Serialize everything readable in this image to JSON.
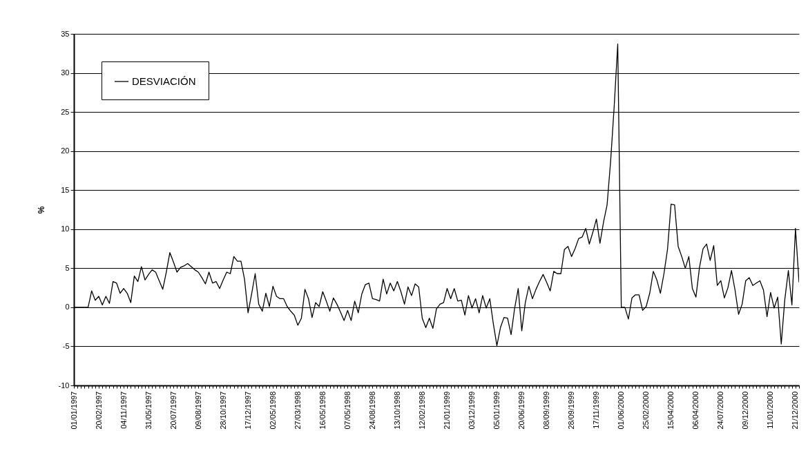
{
  "chart_data": {
    "type": "line",
    "ylabel": "%",
    "legend": "top left",
    "grid": "y",
    "marker": "none",
    "line_style": "solid",
    "ylim": [
      -10,
      35
    ],
    "yticks": [
      -10,
      -5,
      0,
      5,
      10,
      15,
      20,
      25,
      30,
      35
    ],
    "categories": [
      "01/01/1997",
      null,
      null,
      null,
      null,
      null,
      null,
      "20/02/1997",
      null,
      null,
      null,
      null,
      null,
      null,
      "04/11/1997",
      null,
      null,
      null,
      null,
      null,
      null,
      "31/05/1997",
      null,
      null,
      null,
      null,
      null,
      null,
      "20/07/1997",
      null,
      null,
      null,
      null,
      null,
      null,
      "09/08/1997",
      null,
      null,
      null,
      null,
      null,
      null,
      "28/10/1997",
      null,
      null,
      null,
      null,
      null,
      null,
      "17/12/1997",
      null,
      null,
      null,
      null,
      null,
      null,
      "02/05/1998",
      null,
      null,
      null,
      null,
      null,
      null,
      "27/03/1998",
      null,
      null,
      null,
      null,
      null,
      null,
      "16/05/1998",
      null,
      null,
      null,
      null,
      null,
      null,
      "07/05/1998",
      null,
      null,
      null,
      null,
      null,
      null,
      "24/08/1998",
      null,
      null,
      null,
      null,
      null,
      null,
      "13/10/1998",
      null,
      null,
      null,
      null,
      null,
      null,
      "12/02/1998",
      null,
      null,
      null,
      null,
      null,
      null,
      "21/01/1999",
      null,
      null,
      null,
      null,
      null,
      null,
      "03/12/1999",
      null,
      null,
      null,
      null,
      null,
      null,
      "05/01/1999",
      null,
      null,
      null,
      null,
      null,
      null,
      "20/06/1999",
      null,
      null,
      null,
      null,
      null,
      null,
      "08/09/1999",
      null,
      null,
      null,
      null,
      null,
      null,
      "28/09/1999",
      null,
      null,
      null,
      null,
      null,
      null,
      "17/11/1999",
      null,
      null,
      null,
      null,
      null,
      null,
      "01/06/2000",
      null,
      null,
      null,
      null,
      null,
      null,
      "25/02/2000",
      null,
      null,
      null,
      null,
      null,
      null,
      "15/04/2000",
      null,
      null,
      null,
      null,
      null,
      null,
      "06/04/2000",
      null,
      null,
      null,
      null,
      null,
      null,
      "24/07/2000",
      null,
      null,
      null,
      null,
      null,
      null,
      "09/12/2000",
      null,
      null,
      null,
      null,
      null,
      null,
      "11/01/2000",
      null,
      null,
      null,
      null,
      null,
      null,
      "21/12/2000",
      null
    ],
    "series": [
      {
        "name": "DESVIACIÓN",
        "color": "#000000",
        "values": [
          0,
          0,
          0,
          0,
          0,
          2.1,
          0.9,
          1.4,
          0.3,
          1.4,
          0.5,
          3.3,
          3.1,
          1.8,
          2.4,
          1.8,
          0.6,
          4.0,
          3.3,
          5.2,
          3.5,
          4.2,
          4.8,
          4.5,
          3.4,
          2.3,
          4.5,
          7.0,
          5.8,
          4.5,
          5.1,
          5.3,
          5.6,
          5.2,
          4.8,
          4.5,
          3.8,
          3.0,
          4.5,
          3.1,
          3.3,
          2.4,
          3.5,
          4.5,
          4.3,
          6.5,
          5.9,
          5.9,
          3.6,
          -0.7,
          1.7,
          4.3,
          0.4,
          -0.5,
          1.8,
          0.1,
          2.7,
          1.4,
          1.1,
          1.1,
          0.1,
          -0.5,
          -1.0,
          -2.3,
          -1.4,
          2.3,
          1.1,
          -1.3,
          0.6,
          0.1,
          2.0,
          0.8,
          -0.5,
          1.2,
          0.4,
          -0.6,
          -1.7,
          -0.4,
          -1.7,
          0.8,
          -0.7,
          1.7,
          2.9,
          3.1,
          1.1,
          1.0,
          0.8,
          3.6,
          1.7,
          3.1,
          2.1,
          3.3,
          2.0,
          0.4,
          2.6,
          1.5,
          3.0,
          2.6,
          -1.4,
          -2.6,
          -1.4,
          -2.7,
          -0.2,
          0.4,
          0.6,
          2.4,
          1.1,
          2.4,
          0.8,
          0.9,
          -1.0,
          1.5,
          -0.1,
          1.1,
          -0.7,
          1.5,
          -0.1,
          1.1,
          -2.1,
          -4.9,
          -2.6,
          -1.3,
          -1.4,
          -3.5,
          -0.1,
          2.4,
          -3.0,
          0.6,
          2.7,
          1.1,
          2.3,
          3.3,
          4.2,
          3.2,
          2.1,
          4.6,
          4.3,
          4.3,
          7.4,
          7.8,
          6.5,
          7.5,
          8.8,
          9.0,
          10.1,
          8.1,
          9.6,
          11.3,
          8.2,
          10.9,
          13.1,
          18.7,
          25.7,
          33.7,
          0,
          0,
          -1.5,
          1.2,
          1.6,
          1.6,
          -0.4,
          0.1,
          1.8,
          4.6,
          3.5,
          1.8,
          4.3,
          7.4,
          13.2,
          13.1,
          7.8,
          6.5,
          5.0,
          6.5,
          2.4,
          1.3,
          5.1,
          7.5,
          8.1,
          6.0,
          7.9,
          2.8,
          3.4,
          1.2,
          2.5,
          4.7,
          2.2,
          -0.9,
          0.4,
          3.4,
          3.8,
          2.8,
          3.1,
          3.4,
          2.2,
          -1.2,
          1.9,
          -0.1,
          1.3,
          -4.7,
          1.0,
          4.7,
          0.3,
          10.1,
          3.2
        ]
      }
    ]
  }
}
